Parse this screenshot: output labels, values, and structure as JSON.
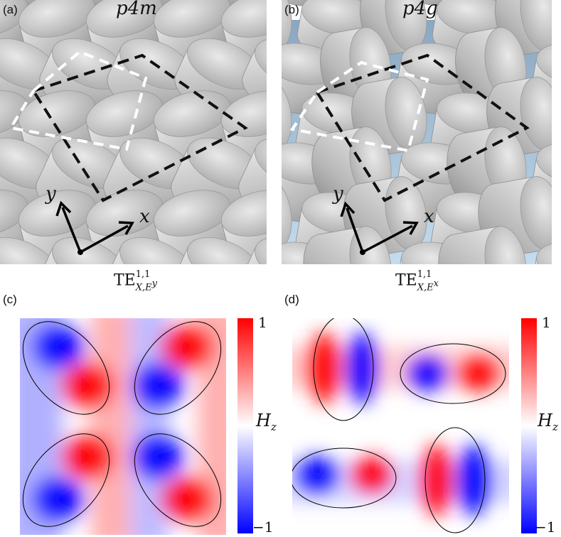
{
  "panels": {
    "a": {
      "letter": "(a)",
      "symmetry": "p4m",
      "axis_x": "x",
      "axis_y": "y"
    },
    "b": {
      "letter": "(b)",
      "symmetry": "p4g",
      "axis_x": "x",
      "axis_y": "y"
    },
    "c": {
      "letter": "(c)",
      "mode_base": "TE",
      "mode_sup": "1,1",
      "mode_sub_prefix": "X,E",
      "mode_sub_sup": "y"
    },
    "d": {
      "letter": "(d)",
      "mode_base": "TE",
      "mode_sup": "1,1",
      "mode_sub_prefix": "X,E",
      "mode_sub_sup": "x"
    }
  },
  "colorbar": {
    "max_label": "1",
    "min_label": "−1",
    "field_label": "H",
    "field_sub": "z",
    "colors": {
      "positive": "#ff0000",
      "zero": "#ffffff",
      "negative": "#0000ff"
    }
  },
  "scene_colors": {
    "background": "#b9d4ea",
    "pillar": "#c9c9c9",
    "pillar_edge": "#8f8f8f"
  }
}
